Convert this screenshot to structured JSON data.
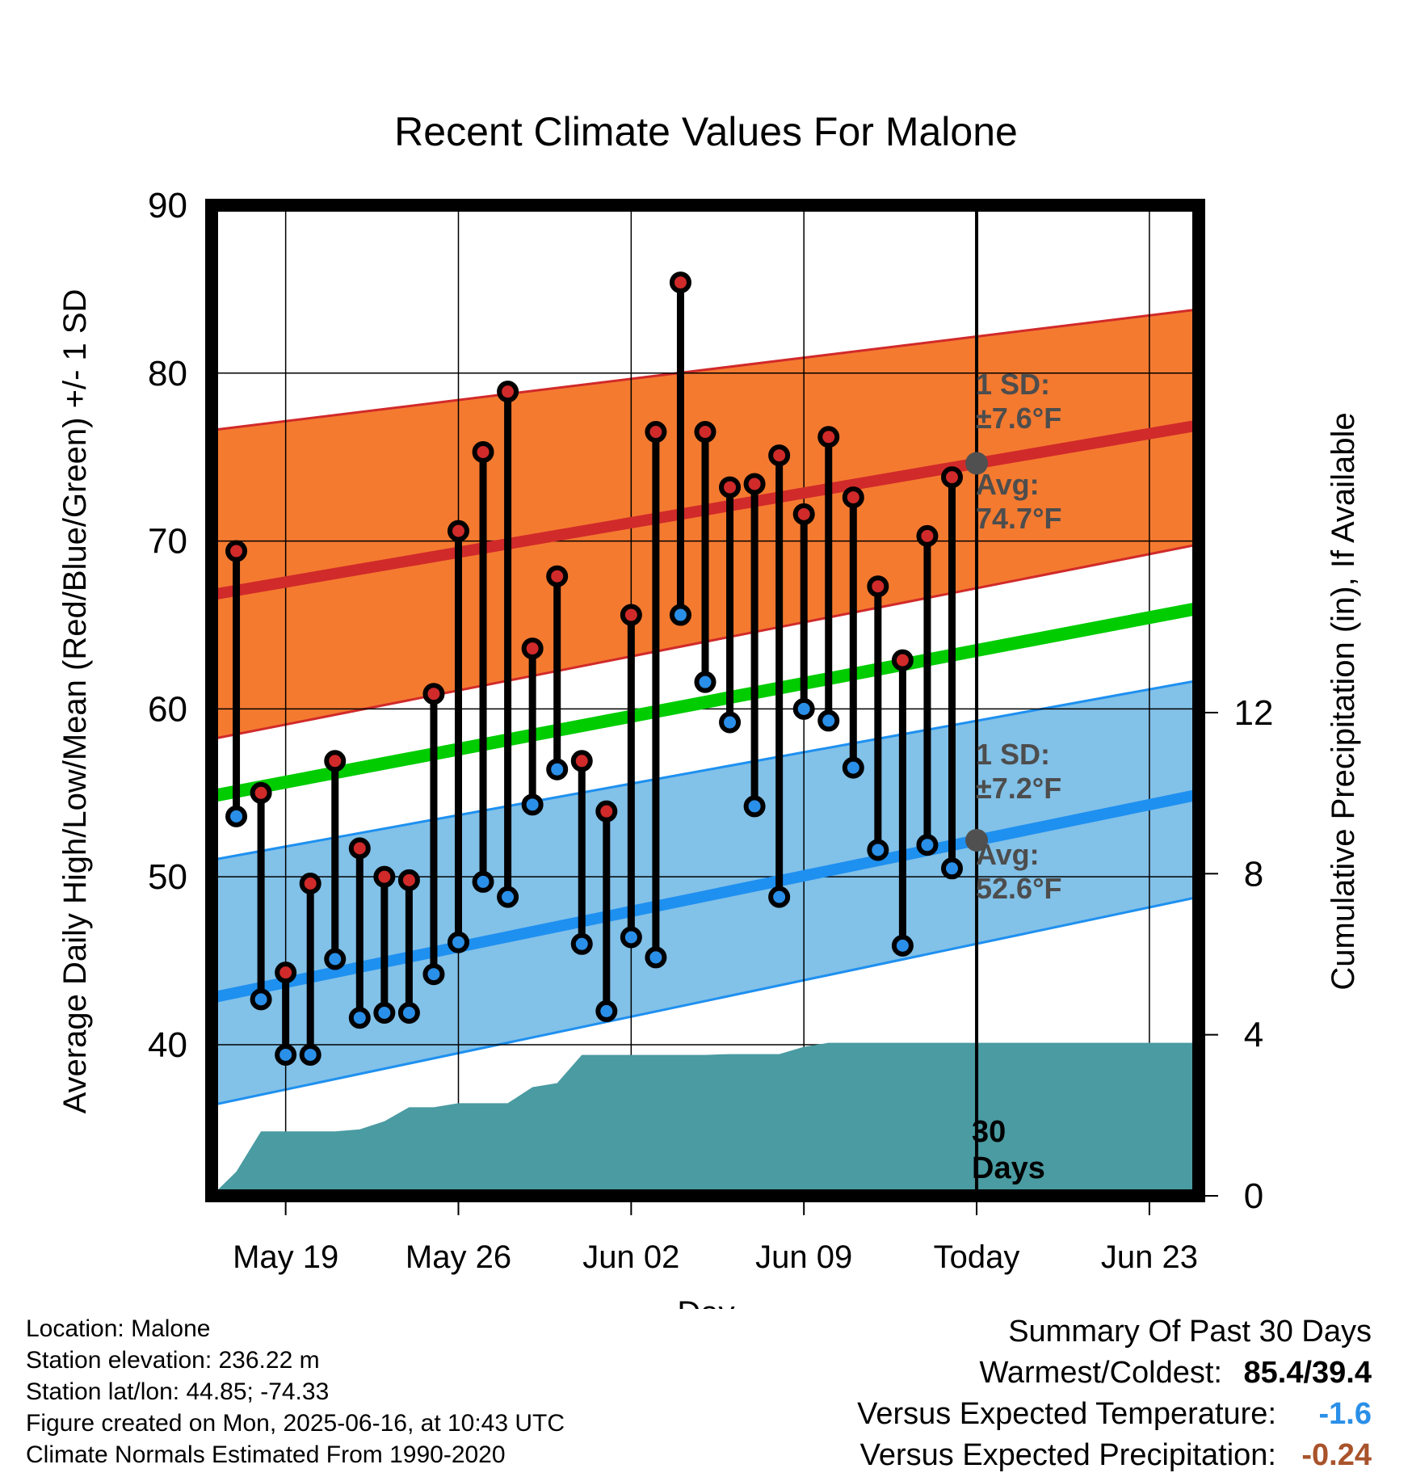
{
  "title": "Recent Climate Values For Malone",
  "xlabel": "Day",
  "ylabel_left": "Average Daily High/Low/Mean (Red/Blue/Green) +/- 1 SD",
  "ylabel_right": "Cumulative Precipitation (in), If Available",
  "colors": {
    "high_band": "#f47a30",
    "high_avg": "#d12a2a",
    "low_band": "#82c1e8",
    "low_avg": "#1e90f0",
    "mean": "#00cc00",
    "precip": "#4a9ba2",
    "high_dot": "#d02a2a",
    "low_dot": "#2a8fe8",
    "today_dot": "#505050",
    "annotation": "#4d4d4d"
  },
  "annotations": {
    "high_sd_label": "1 SD:",
    "high_sd_value": "±7.6°F",
    "high_avg_label": "Avg:",
    "high_avg_value": "74.7°F",
    "low_sd_label": "1 SD:",
    "low_sd_value": "±7.2°F",
    "low_avg_label": "Avg:",
    "low_avg_value": "52.6°F",
    "window_count": "30",
    "window_unit": "Days"
  },
  "chart_data": {
    "type": "line",
    "title": "Recent Climate Values For Malone",
    "xlabel": "Day",
    "x_range": [
      "May 16",
      "Jun 25"
    ],
    "xticks": [
      {
        "date": "May 19",
        "label": "May 19"
      },
      {
        "date": "May 26",
        "label": "May 26"
      },
      {
        "date": "Jun 02",
        "label": "Jun 02"
      },
      {
        "date": "Jun 09",
        "label": "Jun 09"
      },
      {
        "date": "Jun 16",
        "label": "Today"
      },
      {
        "date": "Jun 23",
        "label": "Jun 23"
      }
    ],
    "today": "Jun 16",
    "ylim_left": [
      31,
      90
    ],
    "yticks_left": [
      40,
      50,
      60,
      70,
      80,
      90
    ],
    "ylim_right": [
      0,
      24.6
    ],
    "yticks_right": [
      0,
      4,
      8,
      12
    ],
    "grid": true,
    "daily": {
      "dates": [
        "May 17",
        "May 18",
        "May 19",
        "May 20",
        "May 21",
        "May 22",
        "May 23",
        "May 24",
        "May 25",
        "May 26",
        "May 27",
        "May 28",
        "May 29",
        "May 30",
        "May 31",
        "Jun 01",
        "Jun 02",
        "Jun 03",
        "Jun 04",
        "Jun 05",
        "Jun 06",
        "Jun 07",
        "Jun 08",
        "Jun 09",
        "Jun 10",
        "Jun 11",
        "Jun 12",
        "Jun 13",
        "Jun 14",
        "Jun 15"
      ],
      "high": [
        69.4,
        55.0,
        44.3,
        49.6,
        56.9,
        51.7,
        50.0,
        49.8,
        60.9,
        70.6,
        75.3,
        78.9,
        63.6,
        67.9,
        56.9,
        53.9,
        65.6,
        76.5,
        85.4,
        76.5,
        73.2,
        73.4,
        75.1,
        71.6,
        76.2,
        72.6,
        67.3,
        62.9,
        70.3,
        73.8
      ],
      "low": [
        53.6,
        42.7,
        39.4,
        39.4,
        45.1,
        41.6,
        41.9,
        41.9,
        44.2,
        46.1,
        49.7,
        48.8,
        54.3,
        56.4,
        46.0,
        42.0,
        46.4,
        45.2,
        65.6,
        61.6,
        59.2,
        54.2,
        48.8,
        60.0,
        59.3,
        56.5,
        51.6,
        45.9,
        51.9,
        50.5
      ]
    },
    "normals": {
      "dates": [
        "May 16",
        "Jun 25"
      ],
      "high_avg": [
        66.8,
        76.9
      ],
      "high_sd_upper": [
        76.6,
        83.8
      ],
      "high_sd_lower": [
        58.2,
        69.8
      ],
      "mean": [
        54.8,
        66.0
      ],
      "low_avg": [
        42.8,
        54.9
      ],
      "low_sd_upper": [
        51.0,
        61.7
      ],
      "low_sd_lower": [
        36.4,
        48.8
      ]
    },
    "cumulative_precip": {
      "dates": [
        "May 16",
        "May 17",
        "May 18",
        "May 19",
        "May 20",
        "May 21",
        "May 22",
        "May 23",
        "May 24",
        "May 25",
        "May 26",
        "May 27",
        "May 28",
        "May 29",
        "May 30",
        "May 31",
        "Jun 01",
        "Jun 02",
        "Jun 03",
        "Jun 04",
        "Jun 05",
        "Jun 06",
        "Jun 07",
        "Jun 08",
        "Jun 09",
        "Jun 10",
        "Jun 11",
        "Jun 12",
        "Jun 13",
        "Jun 14",
        "Jun 15",
        "Jun 16",
        "Jun 25"
      ],
      "values": [
        0.0,
        0.6,
        1.6,
        1.6,
        1.6,
        1.6,
        1.65,
        1.85,
        2.2,
        2.2,
        2.3,
        2.3,
        2.3,
        2.7,
        2.8,
        3.5,
        3.5,
        3.5,
        3.5,
        3.5,
        3.5,
        3.52,
        3.52,
        3.52,
        3.7,
        3.8,
        3.8,
        3.8,
        3.8,
        3.8,
        3.8,
        3.8,
        3.8
      ]
    }
  },
  "info": {
    "location": "Location: Malone",
    "elevation": "Station elevation: 236.22 m",
    "latlon": "Station lat/lon: 44.85; -74.33",
    "created": "Figure created on Mon, 2025-06-16, at 10:43 UTC",
    "normals": "Climate Normals Estimated From 1990-2020"
  },
  "summary": {
    "heading": "Summary Of Past 30 Days",
    "warm_cold_label": "Warmest/Coldest:",
    "warm_cold_value": "85.4/39.4",
    "temp_label": "Versus Expected Temperature:",
    "temp_value": "-1.6",
    "precip_label": "Versus Expected Precipitation:",
    "precip_value": "-0.24"
  }
}
